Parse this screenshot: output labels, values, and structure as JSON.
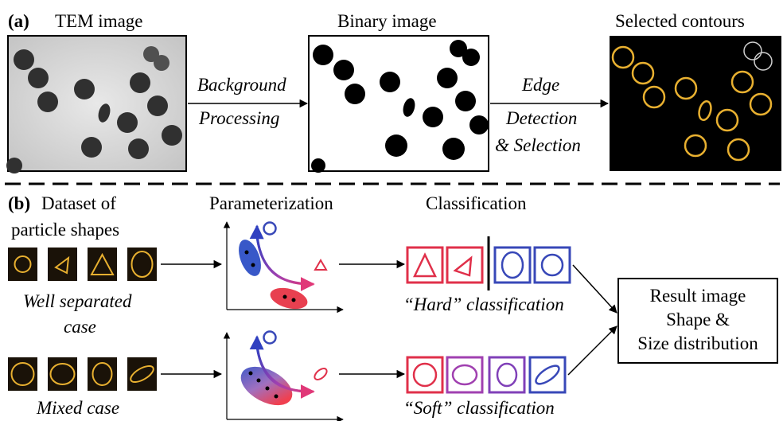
{
  "panel_a": {
    "label": "(a)",
    "tem_title": "TEM image",
    "binary_title": "Binary image",
    "contours_title": "Selected contours",
    "arrow1_lines": [
      "Background",
      "Processing"
    ],
    "arrow2_lines": [
      "Edge",
      "Detection",
      "& Selection"
    ]
  },
  "panel_b": {
    "label": "(b)",
    "dataset_lines": [
      "Dataset of",
      "particle shapes"
    ],
    "parameterization_title": "Parameterization",
    "classification_title": "Classification",
    "well_separated_lines": [
      "Well separated",
      "case"
    ],
    "mixed_case": "Mixed case",
    "hard_classification": "“Hard” classification",
    "soft_classification": "“Soft” classification",
    "result_lines": [
      "Result image",
      "Shape &",
      "Size distribution"
    ]
  },
  "colors": {
    "contour_gold": "#e8b030",
    "triangle_red": "#e0304a",
    "circle_blue": "#3848b8",
    "soft_purple": "#a040b0",
    "dataset_tile_bg": "#1a1208",
    "tem_bg": "#d8d8d8"
  }
}
